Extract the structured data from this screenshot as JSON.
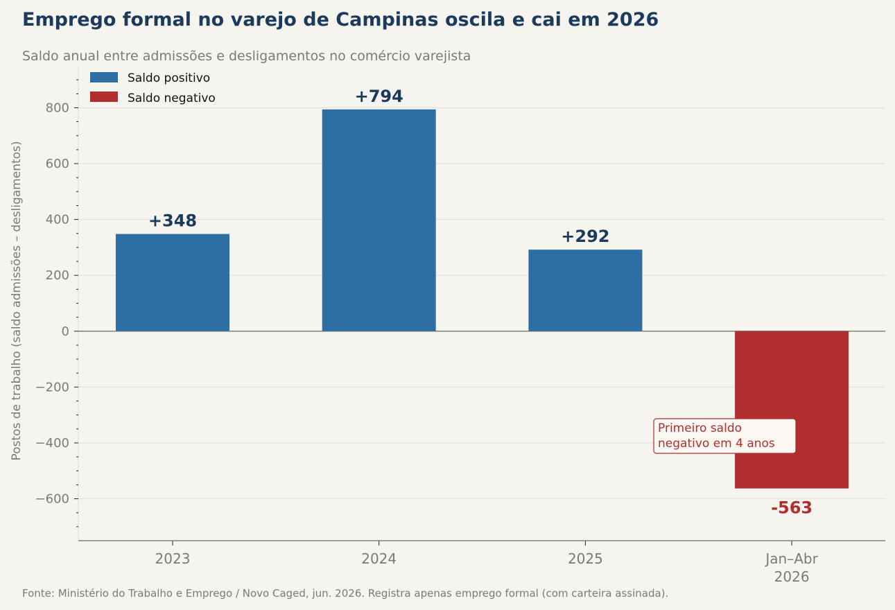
{
  "title": "Emprego formal no varejo de Campinas oscila e cai em 2026",
  "subtitle": "Saldo anual entre admissões e desligamentos no comércio varejista",
  "source": "Fonte: Ministério do Trabalho e Emprego / Novo Caged, jun. 2026. Registra apenas emprego formal (com carteira assinada).",
  "colors": {
    "positive": "#2d6ea3",
    "negative": "#b02e2e",
    "title": "#1b3a5c",
    "muted": "#7a7a7a",
    "background": "#f5f4ef"
  },
  "legend": {
    "position": "top-left",
    "items": [
      {
        "label": "Saldo positivo",
        "color": "#2d6ea3"
      },
      {
        "label": "Saldo negativo",
        "color": "#b02e2e"
      }
    ]
  },
  "annotation": {
    "lines": [
      "Primeiro saldo",
      "negativo em 4 anos"
    ],
    "category": "Jan–Abr 2026"
  },
  "chart_data": {
    "type": "bar",
    "title": "Emprego formal no varejo de Campinas oscila e cai em 2026",
    "subtitle": "Saldo anual entre admissões e desligamentos no comércio varejista",
    "categories": [
      "2023",
      "2024",
      "2025",
      "Jan–Abr 2026"
    ],
    "category_label_lines": [
      [
        "2023"
      ],
      [
        "2024"
      ],
      [
        "2025"
      ],
      [
        "Jan–Abr",
        "2026"
      ]
    ],
    "values": [
      348,
      794,
      292,
      -563
    ],
    "value_labels": [
      "+348",
      "+794",
      "+292",
      "-563"
    ],
    "ylabel": "Postos de trabalho (saldo admissões – desligamentos)",
    "xlabel": "",
    "ylim": [
      -750,
      950
    ],
    "yticks": [
      -600,
      -400,
      -200,
      0,
      200,
      400,
      600,
      800
    ],
    "ytick_labels": [
      "−600",
      "−400",
      "−200",
      "0",
      "200",
      "400",
      "600",
      "800"
    ],
    "grid": "horizontal"
  }
}
